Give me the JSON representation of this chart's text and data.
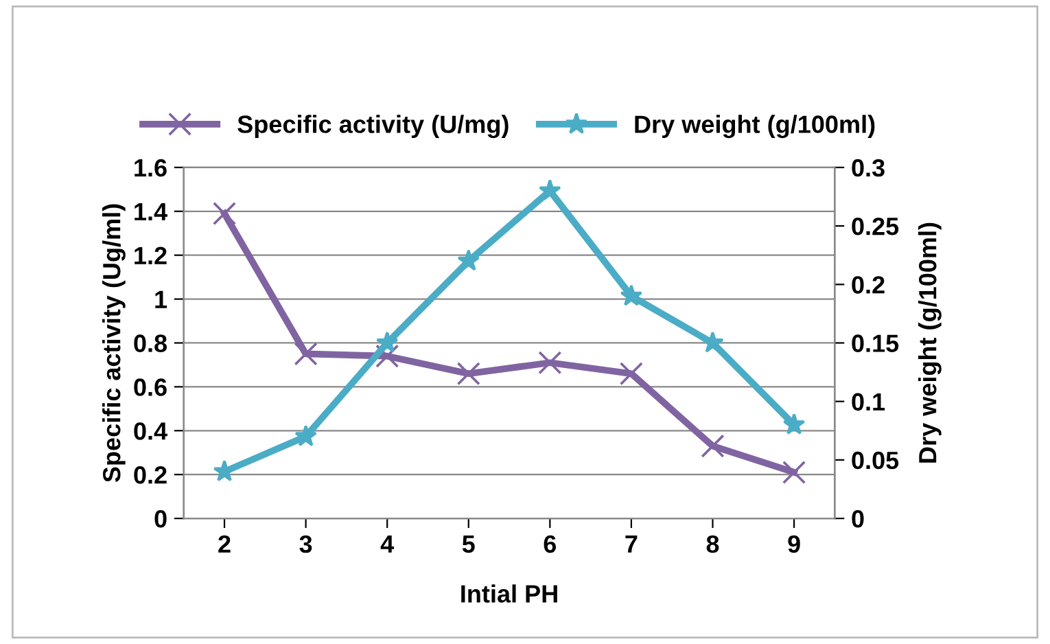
{
  "chart_data": {
    "type": "line",
    "xlabel": "Intial PH",
    "ylabel": "Specific activity (Ug/ml)",
    "y2label": "Dry weight (g/100ml)",
    "categories": [
      "2",
      "3",
      "4",
      "5",
      "6",
      "7",
      "8",
      "9"
    ],
    "series": [
      {
        "name": "Specific activity (U/mg)",
        "color": "#8064a2",
        "marker": "cross",
        "values": [
          1.39,
          0.75,
          0.74,
          0.66,
          0.71,
          0.66,
          0.33,
          0.21
        ]
      },
      {
        "name": "Dry weight (g/100ml)",
        "color": "#4bacc6",
        "marker": "star",
        "axis": "y2",
        "values": [
          0.04,
          0.07,
          0.15,
          0.22,
          0.28,
          0.19,
          0.15,
          0.08
        ]
      }
    ],
    "ylim": [
      0,
      1.6
    ],
    "yticks": [
      0,
      0.2,
      0.4,
      0.6,
      0.8,
      1,
      1.2,
      1.4,
      1.6
    ],
    "y2lim": [
      0,
      0.3
    ],
    "y2ticks": [
      0,
      0.05,
      0.1,
      0.15,
      0.2,
      0.25,
      0.3
    ],
    "grid": "y",
    "legend": "top"
  }
}
